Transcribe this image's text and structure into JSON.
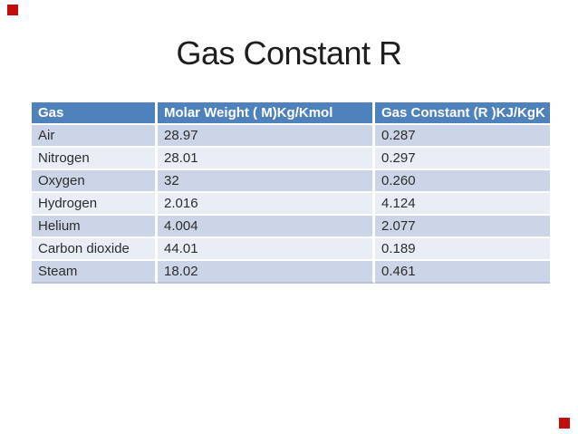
{
  "slide": {
    "title": "Gas Constant R"
  },
  "table": {
    "headers": [
      "Gas",
      "Molar Weight ( M)Kg/Kmol",
      "Gas Constant (R )KJ/KgK"
    ],
    "rows": [
      [
        "Air",
        "28.97",
        "0.287"
      ],
      [
        "Nitrogen",
        "28.01",
        "0.297"
      ],
      [
        "Oxygen",
        "32",
        "0.260"
      ],
      [
        "Hydrogen",
        "2.016",
        "4.124"
      ],
      [
        "Helium",
        "4.004",
        "2.077"
      ],
      [
        "Carbon dioxide",
        "44.01",
        "0.189"
      ],
      [
        "Steam",
        "18.02",
        "0.461"
      ]
    ]
  },
  "colors": {
    "header_bg": "#4f81bd",
    "header_text": "#ffffff",
    "row_band_dark": "#ccd5e8",
    "row_band_light": "#e9edf5",
    "body_text": "#2d2d2d",
    "title_text": "#1e1e1e",
    "corner_marker_red": "#c20d0d"
  },
  "chart_data": {
    "type": "table",
    "title": "Gas Constant R",
    "columns": [
      "Gas",
      "Molar Weight ( M)Kg/Kmol",
      "Gas Constant (R )KJ/KgK"
    ],
    "rows": [
      {
        "gas": "Air",
        "molar_weight": 28.97,
        "gas_constant": 0.287
      },
      {
        "gas": "Nitrogen",
        "molar_weight": 28.01,
        "gas_constant": 0.297
      },
      {
        "gas": "Oxygen",
        "molar_weight": 32,
        "gas_constant": 0.26
      },
      {
        "gas": "Hydrogen",
        "molar_weight": 2.016,
        "gas_constant": 4.124
      },
      {
        "gas": "Helium",
        "molar_weight": 4.004,
        "gas_constant": 2.077
      },
      {
        "gas": "Carbon dioxide",
        "molar_weight": 44.01,
        "gas_constant": 0.189
      },
      {
        "gas": "Steam",
        "molar_weight": 18.02,
        "gas_constant": 0.461
      }
    ]
  }
}
